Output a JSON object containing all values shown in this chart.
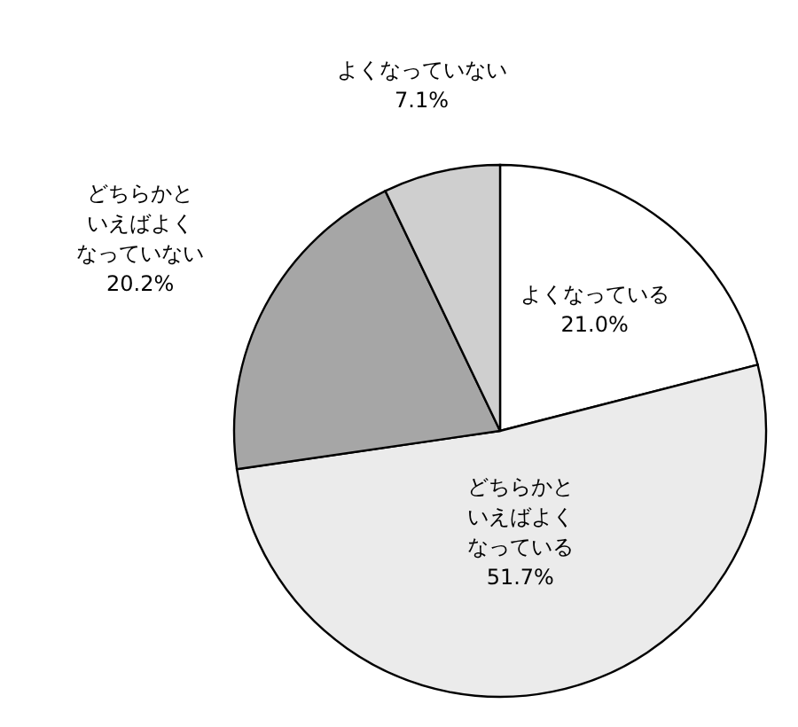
{
  "chart_data": {
    "type": "pie",
    "categories": [
      "よくなっている",
      "どちらかといえばよくなっている",
      "どちらかといえばよくなっていない",
      "よくなっていない"
    ],
    "values": [
      21.0,
      51.7,
      20.2,
      7.1
    ],
    "value_labels": [
      "21.0%",
      "51.7%",
      "20.2%",
      "7.1%"
    ],
    "colors": [
      "#ffffff",
      "#ebebeb",
      "#a6a6a6",
      "#cfcfcf"
    ]
  }
}
